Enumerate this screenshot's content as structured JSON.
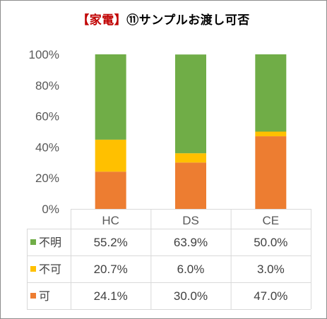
{
  "chart_data": {
    "type": "bar",
    "stacked": true,
    "percent": true,
    "title_tag": "【家電】",
    "title_text": "⑪サンプルお渡し可否",
    "categories": [
      "HC",
      "DS",
      "CE"
    ],
    "series": [
      {
        "name": "可",
        "values": [
          24.1,
          30.0,
          47.0
        ],
        "color": "#ed7d31"
      },
      {
        "name": "不可",
        "values": [
          20.7,
          6.0,
          3.0
        ],
        "color": "#ffc000"
      },
      {
        "name": "不明",
        "values": [
          55.2,
          63.9,
          50.0
        ],
        "color": "#70ad47"
      }
    ],
    "table_rows": [
      {
        "name": "不明",
        "cells": [
          "55.2%",
          "63.9%",
          "50.0%"
        ]
      },
      {
        "name": "不可",
        "cells": [
          "20.7%",
          "6.0%",
          "3.0%"
        ]
      },
      {
        "name": "可",
        "cells": [
          "24.1%",
          "30.0%",
          "47.0%"
        ]
      }
    ],
    "yticks": [
      "0%",
      "20%",
      "40%",
      "60%",
      "80%",
      "100%"
    ],
    "ylim": [
      0,
      100
    ],
    "grid": false,
    "legend": "data-table-left"
  }
}
